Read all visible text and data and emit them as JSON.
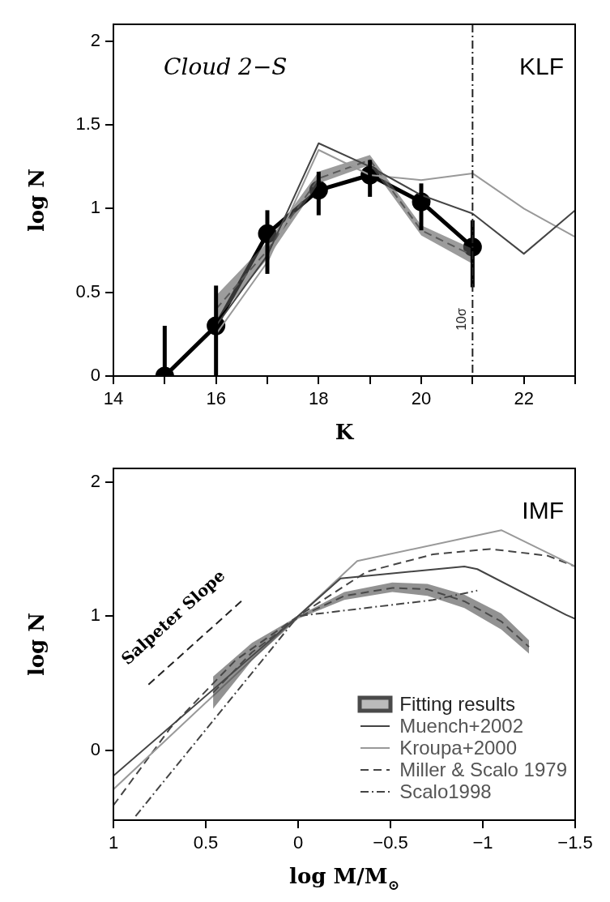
{
  "chart_data": [
    {
      "type": "line",
      "title": "Cloud 2−S",
      "xlabel": "K",
      "ylabel": "log N",
      "xlim": [
        14,
        23
      ],
      "xticks": [
        14,
        {
          "value": 15,
          "label": null
        },
        16,
        {
          "value": 17,
          "label": null
        },
        18,
        {
          "value": 19,
          "label": null
        },
        20,
        {
          "value": 21,
          "label": null
        },
        22,
        {
          "value": 23,
          "label": null
        }
      ],
      "ylim": [
        0,
        2.1
      ],
      "yticks": [
        0,
        0.5,
        1,
        1.5,
        2
      ],
      "annotations": [
        "KLF"
      ],
      "ref_lines": [
        {
          "axis": "x",
          "value": 21,
          "label": "10σ",
          "line_style": "dashdot",
          "color": "#222222"
        }
      ],
      "series": [
        {
          "color": "#444444",
          "x": [
            16,
            17,
            18,
            19,
            20,
            21,
            22,
            23
          ],
          "values": [
            0.3,
            0.72,
            1.39,
            1.25,
            1.08,
            0.97,
            0.73,
            0.99
          ],
          "marker": "none",
          "line_style": "solid"
        },
        {
          "color": "#999999",
          "x": [
            16,
            17,
            18,
            19,
            20,
            21,
            22,
            23
          ],
          "values": [
            0.25,
            0.68,
            1.35,
            1.2,
            1.17,
            1.21,
            1.0,
            0.83
          ],
          "marker": "none",
          "line_style": "solid"
        },
        {
          "color": "#5a5a5a",
          "x": [
            16,
            17,
            18,
            19,
            20,
            21
          ],
          "values": [
            0.4,
            0.75,
            1.18,
            1.29,
            0.87,
            0.72
          ],
          "lower": [
            0.33,
            0.7,
            1.15,
            1.26,
            0.84,
            0.67
          ],
          "upper": [
            0.48,
            0.8,
            1.22,
            1.32,
            0.9,
            0.76
          ],
          "marker": "none",
          "line_style": "dashed"
        },
        {
          "color": "#000000",
          "x": [
            15,
            16,
            17,
            18,
            19,
            20,
            21
          ],
          "values": [
            0,
            0.3,
            0.85,
            1.11,
            1.2,
            1.04,
            0.77
          ],
          "errors": [
            [
              0,
              0.3
            ],
            [
              0,
              0.54
            ],
            [
              0.61,
              0.99
            ],
            [
              0.96,
              1.22
            ],
            [
              1.07,
              1.29
            ],
            [
              0.87,
              1.15
            ],
            [
              0.53,
              0.93
            ]
          ],
          "marker": "circle",
          "line_style": "solid"
        }
      ]
    },
    {
      "type": "line",
      "xlabel": "log M/M$_{⊙}$",
      "ylabel": "log N",
      "xlim": [
        1,
        -1.5
      ],
      "xticks": [
        1,
        0.5,
        0,
        {
          "value": -0.5,
          "label": "−0.5"
        },
        {
          "value": -1,
          "label": "−1"
        },
        {
          "value": -1.5,
          "label": "−1.5"
        }
      ],
      "ylim": [
        -0.52,
        2.1
      ],
      "yticks": [
        0,
        1,
        2
      ],
      "annotations": [
        "IMF",
        "Salpeter Slope"
      ],
      "legend": "bottom right",
      "series": [
        {
          "name": "Fitting results",
          "color": "#4a4a4a",
          "x": [
            0.46,
            0.25,
            0,
            -0.25,
            -0.51,
            -0.7,
            -0.9,
            -1.1,
            -1.25
          ],
          "values": [
            0.43,
            0.73,
            0.99,
            1.15,
            1.21,
            1.2,
            1.11,
            0.96,
            0.77
          ],
          "lower": [
            0.31,
            0.67,
            0.98,
            1.12,
            1.18,
            1.15,
            1.06,
            0.9,
            0.72
          ],
          "upper": [
            0.55,
            0.8,
            1.0,
            1.18,
            1.25,
            1.24,
            1.16,
            1.02,
            0.82
          ],
          "marker": "none",
          "line_style": "dashed"
        },
        {
          "name": "Muench+2002",
          "color": "#444444",
          "x": [
            1,
            0,
            -0.23,
            -0.9,
            -0.97,
            -1.45,
            -1.5
          ],
          "values": [
            -0.19,
            1,
            1.28,
            1.37,
            1.35,
            1.01,
            0.98
          ],
          "marker": "none",
          "line_style": "solid"
        },
        {
          "name": "Kroupa+2000",
          "color": "#999999",
          "x": [
            1,
            0,
            -0.32,
            -1.1,
            -1.5
          ],
          "values": [
            -0.29,
            1,
            1.41,
            1.64,
            1.37
          ],
          "marker": "none",
          "line_style": "solid"
        },
        {
          "name": "Miller & Scalo 1979",
          "color": "#444444",
          "x": [
            1,
            0.69,
            0.34,
            0,
            -0.37,
            -0.73,
            -1.04,
            -1.35,
            -1.5
          ],
          "values": [
            -0.41,
            0.17,
            0.67,
            1,
            1.33,
            1.46,
            1.5,
            1.45,
            1.37
          ],
          "marker": "none",
          "line_style": "dashed"
        },
        {
          "name": "Scalo1998",
          "color": "#444444",
          "x": [
            0.88,
            0,
            -0.73,
            -0.97
          ],
          "values": [
            -0.49,
            1,
            1.12,
            1.19
          ],
          "marker": "none",
          "line_style": "dashdot"
        },
        {
          "color": "#222222",
          "x": [
            0.81,
            0.3
          ],
          "values": [
            0.49,
            1.12
          ],
          "marker": "none",
          "line_style": "dashed"
        }
      ]
    }
  ]
}
